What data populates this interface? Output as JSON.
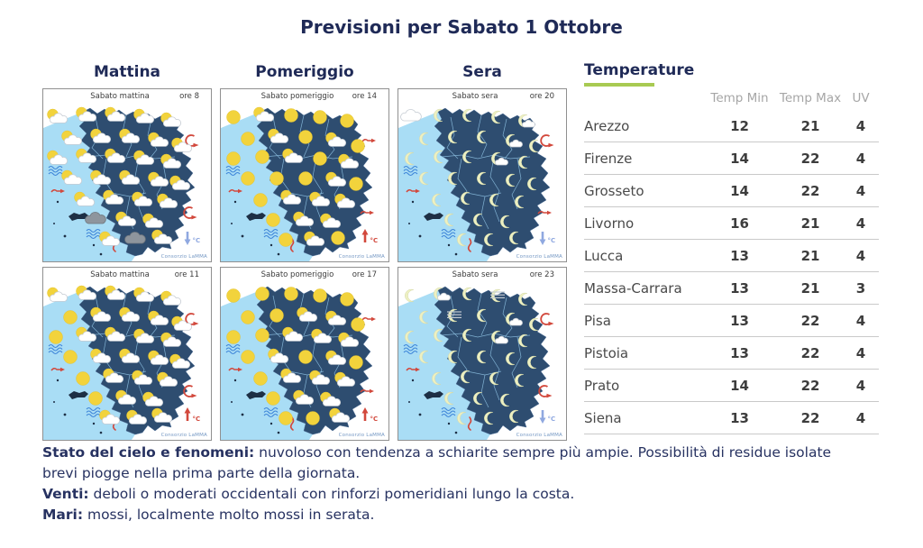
{
  "title": "Previsioni per Sabato 1 Ottobre",
  "columns": {
    "morning": "Mattina",
    "afternoon": "Pomeriggio",
    "evening": "Sera"
  },
  "maps": [
    {
      "period": "Sabato mattina",
      "hour": "ore 8",
      "credit": "Consorzio LaMMA",
      "trend": "down",
      "trend_label": "°C",
      "wind_top": "curl",
      "wind_bottom": "curl",
      "icons": [
        "sc",
        "sc",
        "sc",
        "sc",
        "sc",
        "sc",
        "sc",
        "sc",
        "sc",
        "sc",
        "sc",
        "sc",
        "sc",
        "sc",
        "sc",
        "sc",
        "sc",
        "sc",
        "sc",
        "sc",
        "sc",
        "sc",
        "sc",
        "sc",
        "dc",
        "sc",
        "sc",
        "sc",
        "dc",
        "sc"
      ]
    },
    {
      "period": "Sabato pomeriggio",
      "hour": "ore 14",
      "credit": "Consorzio LaMMA",
      "trend": "up",
      "trend_label": "°C",
      "wind_top": "arrow",
      "wind_bottom": "arrow",
      "icons": [
        "s",
        "sc",
        "s",
        "s",
        "s",
        "s",
        "sc",
        "s",
        "sc",
        "s",
        "s",
        "s",
        "sc",
        "s",
        "sc",
        "s",
        "s",
        "s",
        "sc",
        "s",
        "s",
        "sc",
        "sc",
        "sc",
        "s",
        "sc",
        "sc",
        "s",
        "sc",
        "s"
      ]
    },
    {
      "period": "Sabato sera",
      "hour": "ore 20",
      "credit": "Consorzio LaMMA",
      "trend": "down",
      "trend_label": "°C",
      "wind_top": "curl",
      "wind_bottom": "arrow",
      "icons": [
        "c",
        "m",
        "m",
        "m",
        "mc",
        "m",
        "m",
        "m",
        "mc",
        "m",
        "m",
        "m",
        "m",
        "mc",
        "m",
        "m",
        "m",
        "m",
        "m",
        "m",
        "m",
        "m",
        "m",
        "m",
        "m",
        "m",
        "m",
        "m",
        "m",
        "m"
      ]
    },
    {
      "period": "Sabato mattina",
      "hour": "ore 11",
      "credit": "Consorzio LaMMA",
      "trend": "up",
      "trend_label": "°C",
      "wind_top": "curl",
      "wind_bottom": "curl",
      "icons": [
        "sc",
        "sc",
        "sc",
        "sc",
        "sc",
        "s",
        "sc",
        "sc",
        "sc",
        "sc",
        "s",
        "sc",
        "sc",
        "sc",
        "sc",
        "s",
        "sc",
        "sc",
        "sc",
        "sc",
        "s",
        "sc",
        "sc",
        "sc",
        "s",
        "sc",
        "sc",
        "sc",
        "sc",
        "sc"
      ]
    },
    {
      "period": "Sabato pomeriggio",
      "hour": "ore 17",
      "credit": "Consorzio LaMMA",
      "trend": "up",
      "trend_label": "°C",
      "wind_top": "arrow",
      "wind_bottom": "arrow",
      "icons": [
        "s",
        "s",
        "s",
        "s",
        "s",
        "s",
        "s",
        "sc",
        "sc",
        "s",
        "s",
        "s",
        "sc",
        "sc",
        "sc",
        "s",
        "sc",
        "s",
        "sc",
        "s",
        "s",
        "sc",
        "sc",
        "sc",
        "s",
        "sc",
        "sc",
        "s",
        "s",
        "sc"
      ]
    },
    {
      "period": "Sabato sera",
      "hour": "ore 23",
      "credit": "Consorzio LaMMA",
      "trend": "down",
      "trend_label": "°C",
      "wind_top": "curl",
      "wind_bottom": "curl",
      "icons": [
        "m",
        "mc",
        "m",
        "mf",
        "m",
        "m",
        "mf",
        "m",
        "mc",
        "m",
        "m",
        "m",
        "m",
        "mc",
        "m",
        "m",
        "m",
        "m",
        "m",
        "m",
        "m",
        "m",
        "m",
        "m",
        "m",
        "m",
        "m",
        "m",
        "m",
        "m"
      ]
    }
  ],
  "temperature": {
    "heading": "Temperature",
    "headers": [
      "Temp Min",
      "Temp Max",
      "UV"
    ],
    "rows": [
      {
        "city": "Arezzo",
        "min": "12",
        "max": "21",
        "uv": "4"
      },
      {
        "city": "Firenze",
        "min": "14",
        "max": "22",
        "uv": "4"
      },
      {
        "city": "Grosseto",
        "min": "14",
        "max": "22",
        "uv": "4"
      },
      {
        "city": "Livorno",
        "min": "16",
        "max": "21",
        "uv": "4"
      },
      {
        "city": "Lucca",
        "min": "13",
        "max": "21",
        "uv": "4"
      },
      {
        "city": "Massa-Carrara",
        "min": "13",
        "max": "21",
        "uv": "3"
      },
      {
        "city": "Pisa",
        "min": "13",
        "max": "22",
        "uv": "4"
      },
      {
        "city": "Pistoia",
        "min": "13",
        "max": "22",
        "uv": "4"
      },
      {
        "city": "Prato",
        "min": "14",
        "max": "22",
        "uv": "4"
      },
      {
        "city": "Siena",
        "min": "13",
        "max": "22",
        "uv": "4"
      }
    ]
  },
  "summary": [
    {
      "label": "Stato del cielo e fenomeni:",
      "text": " nuvoloso con tendenza a schiarite sempre più ampie. Possibilità di residue isolate brevi piogge nella prima parte della giornata."
    },
    {
      "label": "Venti:",
      "text": " deboli o moderati occidentali con rinforzi pomeridiani lungo la costa."
    },
    {
      "label": "Mari:",
      "text": " mossi, localmente molto mossi in serata."
    }
  ],
  "colors": {
    "navy_text": "#1f2a57",
    "land": "#2e4d70",
    "sea": "#a9ddf5",
    "island": "#1d2f45",
    "sun": "#f2d33c",
    "moon": "#edf0c2",
    "cloud": "#ffffff",
    "dark_cloud": "#8e959d",
    "red": "#d2483c",
    "wave_blue": "#3f86d9",
    "trend_down": "#8fa8e0",
    "green_underline": "#a8ca52"
  }
}
